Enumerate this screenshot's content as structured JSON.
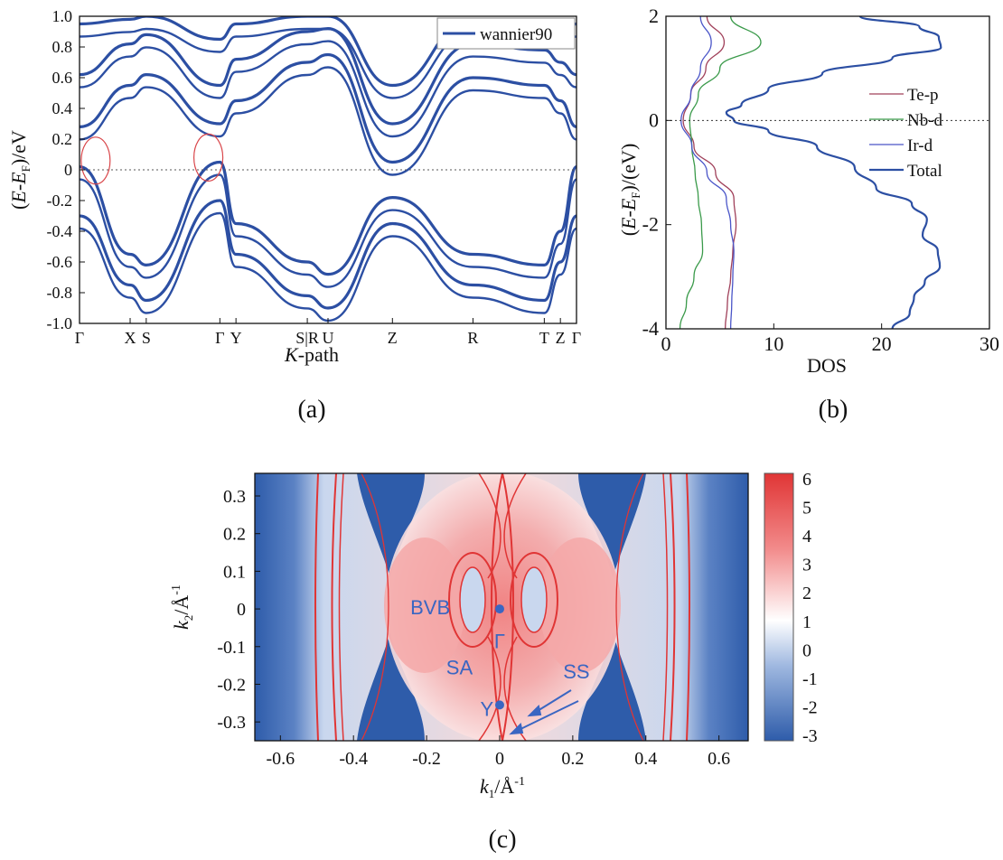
{
  "chart_data": [
    {
      "id": "a",
      "type": "line",
      "caption": "(a)",
      "xlabel_italic": "K",
      "xlabel_rest": "-path",
      "ylabel_parts": [
        "(",
        "E",
        "-",
        "E",
        "F",
        ")/eV"
      ],
      "ylim": [
        -1.0,
        1.0
      ],
      "yticks": [
        "1.0",
        "0.8",
        "0.6",
        "0.4",
        "0.2",
        "0",
        "-0.2",
        "-0.4",
        "-0.6",
        "-0.8",
        "-1.0"
      ],
      "ytick_values": [
        1.0,
        0.8,
        0.6,
        0.4,
        0.2,
        0,
        -0.2,
        -0.4,
        -0.6,
        -0.8,
        -1.0
      ],
      "xticks": [
        {
          "label": "Γ",
          "x": 0.0
        },
        {
          "label": "X",
          "x": 0.22
        },
        {
          "label": "S",
          "x": 0.29
        },
        {
          "label": "Γ",
          "x": 0.61
        },
        {
          "label": "Y",
          "x": 0.68
        },
        {
          "label": "S|R",
          "x": 0.99
        },
        {
          "label": "U",
          "x": 1.08
        },
        {
          "label": "Z",
          "x": 1.36
        },
        {
          "label": "R",
          "x": 1.71
        },
        {
          "label": "T",
          "x": 2.02
        },
        {
          "label": "Z",
          "x": 2.09
        },
        {
          "label": "Γ",
          "x": 2.16
        }
      ],
      "xlim": [
        0,
        2.16
      ],
      "legend": "wannier90",
      "legend_position": "top-right",
      "fermi_level": 0,
      "line_color": "#2c4fa3",
      "highlight_color": "#d9464a",
      "highlights": [
        {
          "x": 0.07,
          "y": 0.06
        },
        {
          "x": 0.56,
          "y": 0.08
        }
      ],
      "bands": [
        {
          "x": [
            0,
            0.22,
            0.29,
            0.61,
            0.68,
            0.99,
            1.08,
            1.36,
            1.71,
            2.02,
            2.09,
            2.16
          ],
          "y": [
            0.02,
            -0.55,
            -0.62,
            0.05,
            -0.35,
            -0.6,
            -0.68,
            -0.18,
            -0.55,
            -0.62,
            -0.4,
            0.02
          ]
        },
        {
          "x": [
            0,
            0.22,
            0.29,
            0.61,
            0.68,
            0.99,
            1.08,
            1.36,
            1.71,
            2.02,
            2.09,
            2.16
          ],
          "y": [
            0.28,
            0.55,
            0.62,
            0.3,
            0.45,
            0.7,
            0.75,
            0.05,
            0.6,
            0.55,
            0.45,
            0.28
          ]
        },
        {
          "x": [
            0,
            0.22,
            0.29,
            0.61,
            0.68,
            0.99,
            1.08,
            1.36,
            1.71,
            2.02,
            2.09,
            2.16
          ],
          "y": [
            0.62,
            0.82,
            0.88,
            0.55,
            0.72,
            0.9,
            0.92,
            0.3,
            0.82,
            0.78,
            0.7,
            0.62
          ]
        },
        {
          "x": [
            0,
            0.22,
            0.29,
            0.61,
            0.68,
            0.99,
            1.08,
            1.36,
            1.71,
            2.02,
            2.09,
            2.16
          ],
          "y": [
            -0.3,
            -0.75,
            -0.85,
            -0.2,
            -0.55,
            -0.82,
            -0.9,
            -0.35,
            -0.75,
            -0.85,
            -0.6,
            -0.3
          ]
        },
        {
          "x": [
            0,
            0.22,
            0.29,
            0.61,
            0.68,
            0.99,
            1.08,
            1.36,
            1.71,
            2.02,
            2.09,
            2.16
          ],
          "y": [
            0.95,
            0.98,
            1.0,
            0.85,
            0.95,
            1.0,
            1.0,
            0.55,
            0.98,
            0.95,
            0.9,
            0.95
          ]
        }
      ]
    },
    {
      "id": "b",
      "type": "line",
      "caption": "(b)",
      "xlabel": "DOS",
      "ylabel_parts": [
        "(",
        "E",
        "-",
        "E",
        "F",
        ")/(eV)"
      ],
      "xlim": [
        0,
        30
      ],
      "ylim": [
        -4,
        2
      ],
      "xticks": [
        0,
        10,
        20,
        30
      ],
      "yticks": [
        2,
        0,
        -2,
        -4
      ],
      "yticks_text": [
        "2",
        "0",
        "-2",
        "-4"
      ],
      "xticks_text": [
        "0",
        "10",
        "20",
        "30"
      ],
      "legend_position": "right",
      "fermi_level": 0,
      "series": [
        {
          "name": "Te-p",
          "color": "#a0405a",
          "width": 1.3,
          "y": [
            2,
            1.5,
            1,
            0.5,
            0,
            -0.5,
            -1,
            -1.5,
            -2,
            -2.5,
            -3,
            -3.5,
            -4
          ],
          "x": [
            3.8,
            5.4,
            3.7,
            2.3,
            1.6,
            2.6,
            4.6,
            6.3,
            6.5,
            6.2,
            6.0,
            5.7,
            5.5
          ]
        },
        {
          "name": "Nb-d",
          "color": "#3a9a4a",
          "width": 1.3,
          "y": [
            2,
            1.5,
            1,
            0.5,
            0,
            -0.5,
            -1,
            -1.5,
            -2,
            -2.5,
            -3,
            -3.5,
            -4
          ],
          "x": [
            6.0,
            8.8,
            5.0,
            3.0,
            2.2,
            2.4,
            2.7,
            3.0,
            3.3,
            3.4,
            2.6,
            1.9,
            1.3
          ]
        },
        {
          "name": "Ir-d",
          "color": "#4a55c8",
          "width": 1.3,
          "y": [
            2,
            1.5,
            1,
            0.5,
            0,
            -0.5,
            -1,
            -1.5,
            -2,
            -2.5,
            -3,
            -3.5,
            -4
          ],
          "x": [
            3.2,
            4.2,
            3.2,
            2.3,
            1.4,
            2.4,
            3.8,
            5.6,
            6.0,
            6.3,
            6.2,
            6.1,
            6.0
          ]
        },
        {
          "name": "Total",
          "color": "#2c4fa3",
          "width": 2.2,
          "y": [
            2,
            1.8,
            1.6,
            1.4,
            1.2,
            0.9,
            0.6,
            0.3,
            0.15,
            0,
            -0.2,
            -0.5,
            -0.9,
            -1.3,
            -1.6,
            -1.9,
            -2.2,
            -2.5,
            -2.8,
            -3.1,
            -3.4,
            -3.7,
            -4
          ],
          "x": [
            18.0,
            23.5,
            25.3,
            25.5,
            21.0,
            14.5,
            9.5,
            7.0,
            5.6,
            6.3,
            9.5,
            14.0,
            17.5,
            19.5,
            22.8,
            24.2,
            23.8,
            25.2,
            25.4,
            24.0,
            23.0,
            22.6,
            21.0
          ]
        }
      ]
    },
    {
      "id": "c",
      "type": "heatmap",
      "caption": "(c)",
      "xlabel_parts": [
        "k",
        "1",
        "/Å",
        "-1"
      ],
      "ylabel_parts": [
        "k",
        "2",
        "/Å",
        "-1"
      ],
      "xlim": [
        -0.67,
        0.68
      ],
      "ylim": [
        -0.35,
        0.36
      ],
      "xticks": [
        -0.6,
        -0.4,
        -0.2,
        0,
        0.2,
        0.4,
        0.6
      ],
      "xticks_text": [
        "-0.6",
        "-0.4",
        "-0.2",
        "0",
        "0.2",
        "0.4",
        "0.6"
      ],
      "yticks": [
        0.3,
        0.2,
        0.1,
        0,
        -0.1,
        -0.2,
        -0.3
      ],
      "yticks_text": [
        "0.3",
        "0.2",
        "0.1",
        "0",
        "-0.1",
        "-0.2",
        "-0.3"
      ],
      "colorbar": {
        "min": -3,
        "max": 6,
        "ticks": [
          "6",
          "5",
          "4",
          "3",
          "2",
          "1",
          "0",
          "-1",
          "-2",
          "-3"
        ]
      },
      "annotations": [
        {
          "text": "BVB",
          "x": -0.19,
          "y": 0.005
        },
        {
          "text": "Γ",
          "x": 0.0,
          "y": -0.085
        },
        {
          "text": "SA",
          "x": -0.11,
          "y": -0.155
        },
        {
          "text": "SS",
          "x": 0.21,
          "y": -0.165
        },
        {
          "text": "Y",
          "x": -0.035,
          "y": -0.265
        }
      ],
      "points": [
        {
          "name": "Γ",
          "x": 0.0,
          "y": 0.0
        },
        {
          "name": "Y",
          "x": 0.0,
          "y": -0.255
        }
      ],
      "colors": {
        "blue": "#2e5caa",
        "red": "#e03535",
        "white": "#ffffff"
      }
    }
  ]
}
